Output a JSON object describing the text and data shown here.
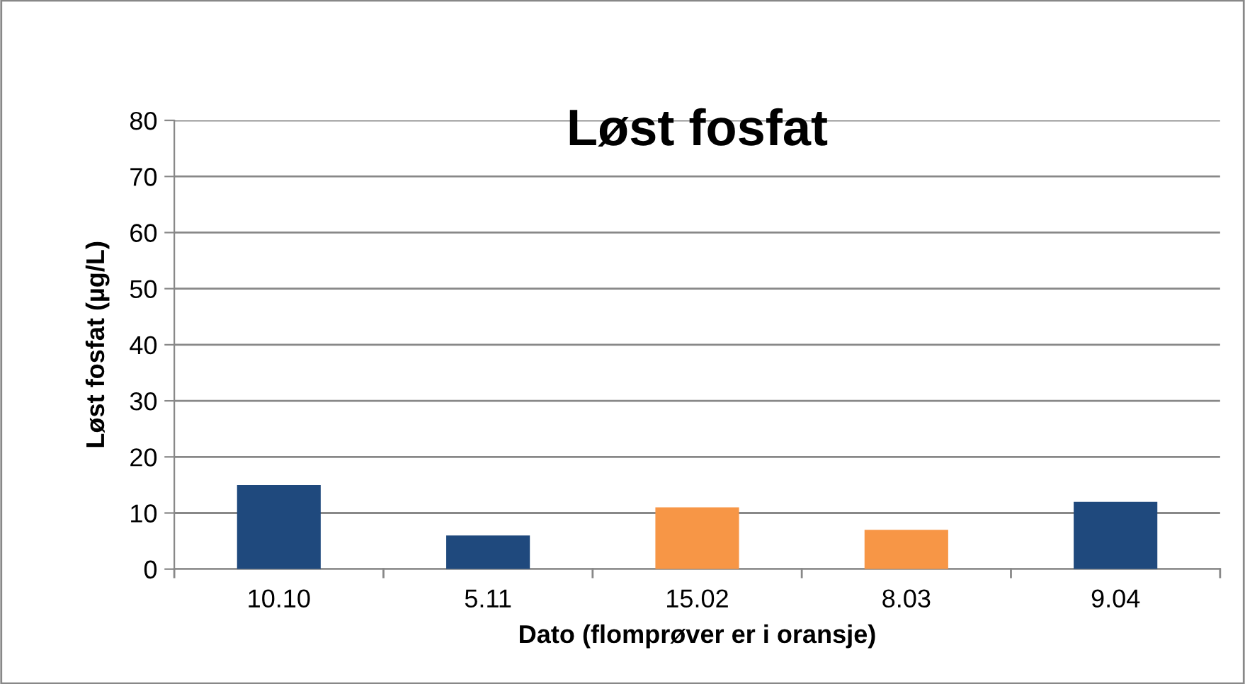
{
  "chart_data": {
    "type": "bar",
    "title": "Løst fosfat",
    "xlabel": "Dato (flomprøver er i oransje)",
    "ylabel": "Løst fosfat (µg/L)",
    "categories": [
      "10.10",
      "5.11",
      "15.02",
      "8.03",
      "9.04"
    ],
    "values": [
      15,
      6,
      11,
      7,
      12
    ],
    "colors": [
      "#1f497d",
      "#1f497d",
      "#f79646",
      "#f79646",
      "#1f497d"
    ],
    "ylim": [
      0,
      80
    ],
    "yticks": [
      0,
      10,
      20,
      30,
      40,
      50,
      60,
      70,
      80
    ],
    "grid": "y",
    "legend": false
  }
}
